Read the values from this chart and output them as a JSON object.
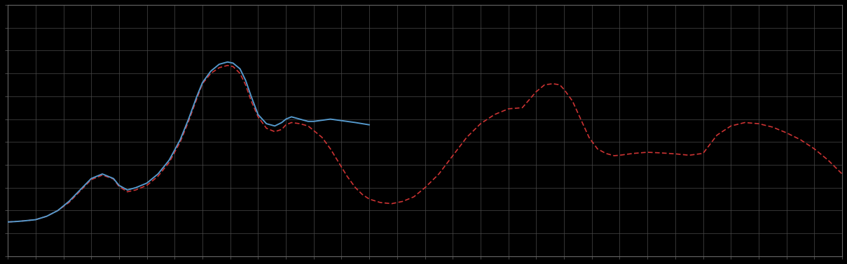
{
  "background_color": "#000000",
  "plot_bg_color": "#000000",
  "grid_color": "#4a4a4a",
  "blue_line_color": "#5599cc",
  "red_line_color": "#cc3333",
  "blue_linewidth": 1.4,
  "red_linewidth": 1.2,
  "figsize": [
    12.09,
    3.78
  ],
  "dpi": 100,
  "xlim": [
    0,
    30
  ],
  "ylim": [
    0,
    11
  ],
  "spine_color": "#666666",
  "x_major_step": 1,
  "y_major_step": 1,
  "blue_x": [
    0,
    0.3,
    0.6,
    1.0,
    1.4,
    1.8,
    2.2,
    2.6,
    3.0,
    3.4,
    3.8,
    4.0,
    4.3,
    4.6,
    5.0,
    5.4,
    5.8,
    6.2,
    6.5,
    6.8,
    7.0,
    7.3,
    7.6,
    7.9,
    8.1,
    8.35,
    8.55,
    8.75,
    9.0,
    9.3,
    9.6,
    9.85,
    10.0,
    10.2,
    10.5,
    10.8,
    11.0,
    11.3,
    11.6,
    11.9,
    12.2,
    12.5,
    12.75,
    13.0
  ],
  "blue_y": [
    1.5,
    1.52,
    1.55,
    1.6,
    1.75,
    2.0,
    2.4,
    2.9,
    3.4,
    3.6,
    3.4,
    3.1,
    2.9,
    3.0,
    3.2,
    3.6,
    4.2,
    5.1,
    6.0,
    7.0,
    7.6,
    8.1,
    8.4,
    8.5,
    8.45,
    8.2,
    7.7,
    7.0,
    6.2,
    5.8,
    5.7,
    5.85,
    6.0,
    6.1,
    6.0,
    5.9,
    5.9,
    5.95,
    6.0,
    5.95,
    5.9,
    5.85,
    5.8,
    5.75
  ],
  "red_x": [
    0,
    0.3,
    0.6,
    1.0,
    1.4,
    1.8,
    2.2,
    2.6,
    3.0,
    3.4,
    3.8,
    4.0,
    4.3,
    4.6,
    5.0,
    5.4,
    5.8,
    6.2,
    6.5,
    6.8,
    7.0,
    7.3,
    7.6,
    7.9,
    8.1,
    8.35,
    8.55,
    8.75,
    9.0,
    9.3,
    9.6,
    9.85,
    10.0,
    10.2,
    10.5,
    10.8,
    11.0,
    11.3,
    11.6,
    11.9,
    12.2,
    12.5,
    12.75,
    13.0,
    13.4,
    13.8,
    14.2,
    14.6,
    15.0,
    15.5,
    16.0,
    16.5,
    17.0,
    17.5,
    18.0,
    18.5,
    19.0,
    19.3,
    19.6,
    19.85,
    20.0,
    20.3,
    20.6,
    20.9,
    21.2,
    21.5,
    21.8,
    22.0,
    22.5,
    23.0,
    23.5,
    24.0,
    24.5,
    25.0,
    25.5,
    26.0,
    26.5,
    27.0,
    27.5,
    28.0,
    28.5,
    29.0,
    29.5,
    30.0
  ],
  "red_y": [
    1.5,
    1.52,
    1.55,
    1.6,
    1.75,
    2.0,
    2.35,
    2.85,
    3.35,
    3.55,
    3.38,
    3.05,
    2.82,
    2.9,
    3.1,
    3.5,
    4.1,
    5.0,
    5.9,
    6.9,
    7.55,
    8.0,
    8.25,
    8.35,
    8.3,
    8.0,
    7.5,
    6.8,
    6.1,
    5.6,
    5.45,
    5.55,
    5.75,
    5.85,
    5.8,
    5.7,
    5.5,
    5.2,
    4.7,
    4.1,
    3.5,
    3.0,
    2.7,
    2.5,
    2.35,
    2.3,
    2.4,
    2.6,
    3.0,
    3.6,
    4.4,
    5.2,
    5.8,
    6.2,
    6.45,
    6.5,
    7.2,
    7.5,
    7.55,
    7.5,
    7.3,
    6.8,
    6.0,
    5.2,
    4.7,
    4.5,
    4.4,
    4.42,
    4.5,
    4.55,
    4.52,
    4.48,
    4.42,
    4.5,
    5.3,
    5.7,
    5.85,
    5.8,
    5.65,
    5.4,
    5.1,
    4.7,
    4.2,
    3.6
  ]
}
